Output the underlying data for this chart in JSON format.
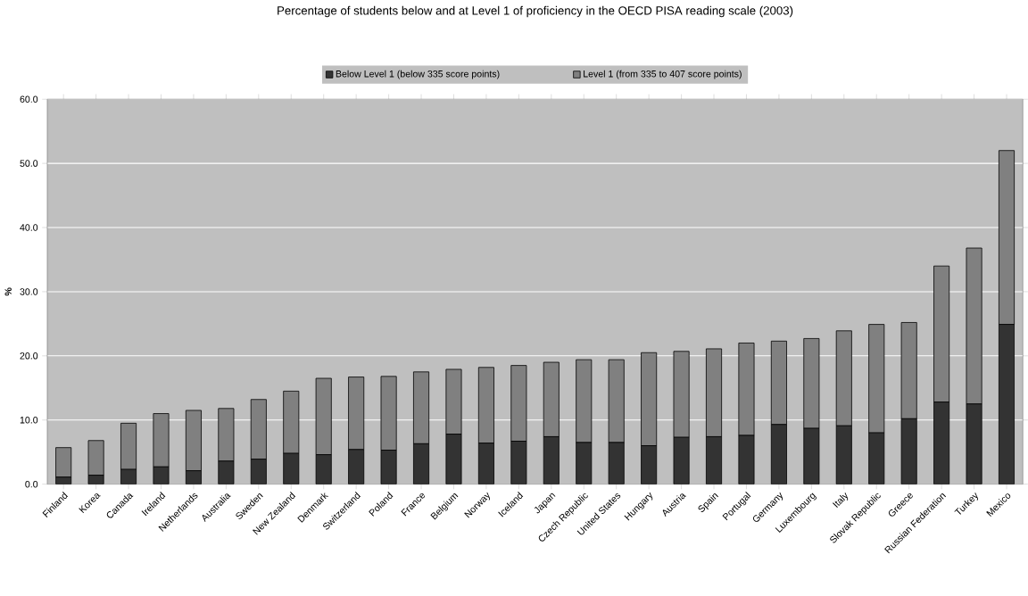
{
  "chart_data": {
    "type": "bar",
    "stacked": true,
    "title": "Percentage of students below and at Level 1 of proficiency in the OECD PISA reading scale (2003)",
    "ylabel": "%",
    "categories": [
      "Finland",
      "Korea",
      "Canada",
      "Ireland",
      "Netherlands",
      "Australia",
      "Sweden",
      "New Zealand",
      "Denmark",
      "Switzerland",
      "Poland",
      "France",
      "Belgium",
      "Norway",
      "Iceland",
      "Japan",
      "Czech Republic",
      "United States",
      "Hungary",
      "Austria",
      "Spain",
      "Portugal",
      "Germany",
      "Luxembourg",
      "Italy",
      "Slovak Republic",
      "Greece",
      "Russian Federation",
      "Turkey",
      "Mexico"
    ],
    "series": [
      {
        "name": "Below Level 1 (below 335 score points)",
        "color": "#333333",
        "values": [
          1.1,
          1.4,
          2.3,
          2.7,
          2.1,
          3.6,
          3.9,
          4.8,
          4.6,
          5.4,
          5.3,
          6.3,
          7.8,
          6.4,
          6.7,
          7.4,
          6.5,
          6.5,
          6.0,
          7.3,
          7.4,
          7.6,
          9.3,
          8.7,
          9.1,
          8.0,
          10.2,
          12.8,
          12.5,
          24.9
        ]
      },
      {
        "name": "Level 1 (from 335 to 407 score points)",
        "color": "#808080",
        "values": [
          4.6,
          5.4,
          7.2,
          8.3,
          9.4,
          8.2,
          9.3,
          9.7,
          11.9,
          11.3,
          11.5,
          11.2,
          10.1,
          11.8,
          11.8,
          11.6,
          12.9,
          12.9,
          14.5,
          13.4,
          13.7,
          14.4,
          13.0,
          14.0,
          14.8,
          16.9,
          15.0,
          21.2,
          24.3,
          27.1
        ]
      }
    ],
    "ylim": [
      0,
      60
    ],
    "yticks": [
      {
        "value": 0,
        "label": "0.0"
      },
      {
        "value": 10,
        "label": "10.0"
      },
      {
        "value": 20,
        "label": "20.0"
      },
      {
        "value": 30,
        "label": "30.0"
      },
      {
        "value": 40,
        "label": "40.0"
      },
      {
        "value": 50,
        "label": "50.0"
      },
      {
        "value": 60,
        "label": "60.0"
      }
    ],
    "grid": "y",
    "legend": "top"
  }
}
